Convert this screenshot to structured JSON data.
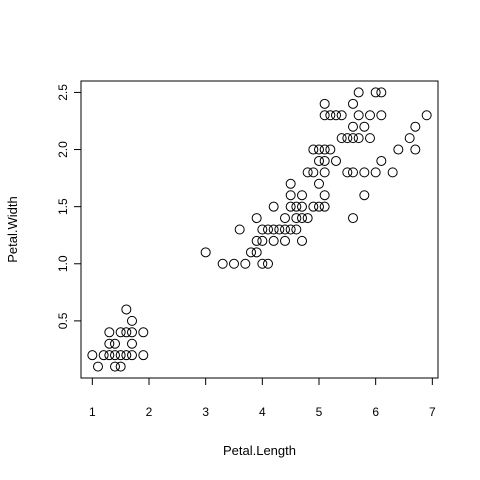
{
  "chart_data": {
    "type": "scatter",
    "title": "",
    "xlabel": "Petal.Length",
    "ylabel": "Petal.Width",
    "xlim": [
      0.8,
      7.1
    ],
    "ylim": [
      0.0,
      2.6
    ],
    "x_ticks": [
      1,
      2,
      3,
      4,
      5,
      6,
      7
    ],
    "y_ticks": [
      0.5,
      1.0,
      1.5,
      2.0,
      2.5
    ],
    "x_tick_labels": [
      "1",
      "2",
      "3",
      "4",
      "5",
      "6",
      "7"
    ],
    "y_tick_labels": [
      "0.5",
      "1.0",
      "1.5",
      "2.0",
      "2.5"
    ],
    "grid": false,
    "legend": "none",
    "marker": "open-circle",
    "points": [
      [
        1.0,
        0.2
      ],
      [
        1.1,
        0.1
      ],
      [
        1.2,
        0.2
      ],
      [
        1.3,
        0.2
      ],
      [
        1.3,
        0.3
      ],
      [
        1.3,
        0.4
      ],
      [
        1.4,
        0.1
      ],
      [
        1.4,
        0.2
      ],
      [
        1.4,
        0.3
      ],
      [
        1.5,
        0.1
      ],
      [
        1.5,
        0.2
      ],
      [
        1.5,
        0.4
      ],
      [
        1.6,
        0.2
      ],
      [
        1.6,
        0.4
      ],
      [
        1.6,
        0.6
      ],
      [
        1.7,
        0.2
      ],
      [
        1.7,
        0.3
      ],
      [
        1.7,
        0.4
      ],
      [
        1.7,
        0.5
      ],
      [
        1.9,
        0.2
      ],
      [
        1.9,
        0.4
      ],
      [
        3.0,
        1.1
      ],
      [
        3.3,
        1.0
      ],
      [
        3.5,
        1.0
      ],
      [
        3.6,
        1.3
      ],
      [
        3.7,
        1.0
      ],
      [
        3.8,
        1.1
      ],
      [
        3.9,
        1.1
      ],
      [
        3.9,
        1.2
      ],
      [
        3.9,
        1.4
      ],
      [
        4.0,
        1.0
      ],
      [
        4.0,
        1.2
      ],
      [
        4.0,
        1.3
      ],
      [
        4.1,
        1.0
      ],
      [
        4.1,
        1.3
      ],
      [
        4.2,
        1.2
      ],
      [
        4.2,
        1.3
      ],
      [
        4.2,
        1.5
      ],
      [
        4.3,
        1.3
      ],
      [
        4.4,
        1.2
      ],
      [
        4.4,
        1.3
      ],
      [
        4.4,
        1.4
      ],
      [
        4.5,
        1.3
      ],
      [
        4.5,
        1.5
      ],
      [
        4.5,
        1.6
      ],
      [
        4.5,
        1.7
      ],
      [
        4.6,
        1.3
      ],
      [
        4.6,
        1.4
      ],
      [
        4.6,
        1.5
      ],
      [
        4.7,
        1.2
      ],
      [
        4.7,
        1.4
      ],
      [
        4.7,
        1.5
      ],
      [
        4.7,
        1.6
      ],
      [
        4.8,
        1.4
      ],
      [
        4.8,
        1.8
      ],
      [
        4.9,
        1.5
      ],
      [
        4.9,
        1.8
      ],
      [
        4.9,
        2.0
      ],
      [
        5.0,
        1.5
      ],
      [
        5.0,
        1.7
      ],
      [
        5.0,
        1.9
      ],
      [
        5.0,
        2.0
      ],
      [
        5.1,
        1.5
      ],
      [
        5.1,
        1.6
      ],
      [
        5.1,
        1.8
      ],
      [
        5.1,
        1.9
      ],
      [
        5.1,
        2.0
      ],
      [
        5.1,
        2.3
      ],
      [
        5.1,
        2.4
      ],
      [
        5.2,
        2.0
      ],
      [
        5.2,
        2.3
      ],
      [
        5.3,
        1.9
      ],
      [
        5.3,
        2.3
      ],
      [
        5.4,
        2.1
      ],
      [
        5.4,
        2.3
      ],
      [
        5.5,
        1.8
      ],
      [
        5.5,
        2.1
      ],
      [
        5.6,
        1.4
      ],
      [
        5.6,
        1.8
      ],
      [
        5.6,
        2.1
      ],
      [
        5.6,
        2.2
      ],
      [
        5.6,
        2.4
      ],
      [
        5.7,
        2.1
      ],
      [
        5.7,
        2.3
      ],
      [
        5.7,
        2.5
      ],
      [
        5.8,
        1.6
      ],
      [
        5.8,
        1.8
      ],
      [
        5.8,
        2.2
      ],
      [
        5.9,
        2.1
      ],
      [
        5.9,
        2.3
      ],
      [
        6.0,
        1.8
      ],
      [
        6.0,
        2.5
      ],
      [
        6.1,
        1.9
      ],
      [
        6.1,
        2.3
      ],
      [
        6.1,
        2.5
      ],
      [
        6.3,
        1.8
      ],
      [
        6.4,
        2.0
      ],
      [
        6.6,
        2.1
      ],
      [
        6.7,
        2.0
      ],
      [
        6.7,
        2.2
      ],
      [
        6.9,
        2.3
      ]
    ]
  }
}
